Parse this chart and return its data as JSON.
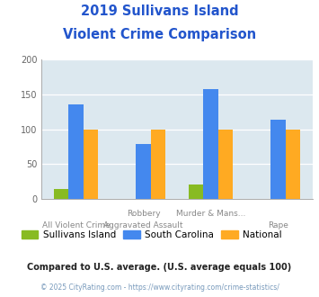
{
  "title_line1": "2019 Sullivans Island",
  "title_line2": "Violent Crime Comparison",
  "title_color": "#2255cc",
  "cat_labels_row1": [
    "",
    "Robbery",
    "Murder & Mans...",
    ""
  ],
  "cat_labels_row2": [
    "All Violent Crime",
    "Aggravated Assault",
    "",
    "Rape"
  ],
  "sullivans_values": [
    14,
    0,
    21,
    0
  ],
  "sc_values": [
    135,
    79,
    157,
    113
  ],
  "national_values": [
    100,
    100,
    100,
    100
  ],
  "sullivans_color": "#88bb22",
  "sc_color": "#4488ee",
  "national_color": "#ffaa22",
  "ylim": [
    0,
    200
  ],
  "yticks": [
    0,
    50,
    100,
    150,
    200
  ],
  "background_color": "#dce8ef",
  "legend_labels": [
    "Sullivans Island",
    "South Carolina",
    "National"
  ],
  "footnote1": "Compared to U.S. average. (U.S. average equals 100)",
  "footnote2": "© 2025 CityRating.com - https://www.cityrating.com/crime-statistics/",
  "footnote1_color": "#222222",
  "footnote2_color": "#7799bb"
}
